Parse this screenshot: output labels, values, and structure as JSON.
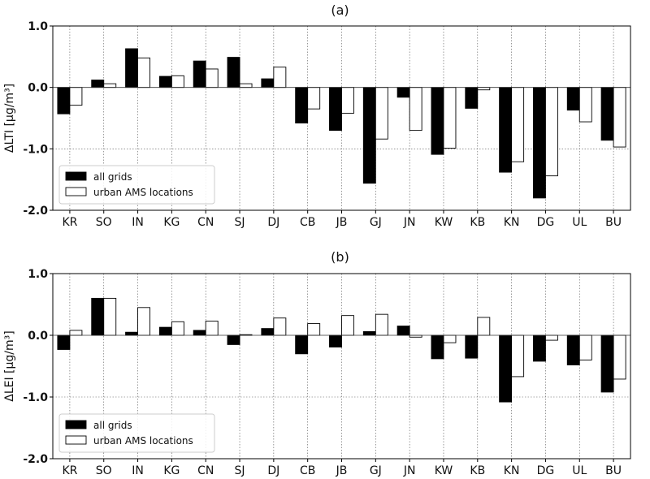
{
  "chart_data": [
    {
      "type": "bar",
      "title": "(a)",
      "ylabel": "ΔLTI [μg/m³]",
      "ylim": [
        -2.0,
        1.0
      ],
      "yticks": [
        "1.0",
        "0.0",
        "-1.0",
        "-2.0"
      ],
      "ytick_values": [
        1.0,
        0.0,
        -1.0,
        -2.0
      ],
      "grid": true,
      "legend_position": "lower-left",
      "categories": [
        "KR",
        "SO",
        "IN",
        "KG",
        "CN",
        "SJ",
        "DJ",
        "CB",
        "JB",
        "GJ",
        "JN",
        "KW",
        "KB",
        "KN",
        "DG",
        "UL",
        "BU"
      ],
      "series": [
        {
          "name": "all grids",
          "color": "#000000",
          "values": [
            -0.43,
            0.12,
            0.63,
            0.18,
            0.43,
            0.49,
            0.14,
            -0.58,
            -0.7,
            -1.56,
            -0.16,
            -1.09,
            -0.34,
            -1.38,
            -1.8,
            -0.37,
            -0.86
          ]
        },
        {
          "name": "urban AMS locations",
          "color": "#ffffff",
          "values": [
            -0.29,
            0.06,
            0.48,
            0.19,
            0.3,
            0.06,
            0.33,
            -0.35,
            -0.42,
            -0.84,
            -0.7,
            -0.99,
            -0.04,
            -1.21,
            -1.44,
            -0.56,
            -0.97
          ]
        }
      ]
    },
    {
      "type": "bar",
      "title": "(b)",
      "ylabel": "ΔLEI [μg/m³]",
      "ylim": [
        -2.0,
        1.0
      ],
      "yticks": [
        "1.0",
        "0.0",
        "-1.0",
        "-2.0"
      ],
      "ytick_values": [
        1.0,
        0.0,
        -1.0,
        -2.0
      ],
      "grid": true,
      "legend_position": "lower-left",
      "categories": [
        "KR",
        "SO",
        "IN",
        "KG",
        "CN",
        "SJ",
        "DJ",
        "CB",
        "JB",
        "GJ",
        "JN",
        "KW",
        "KB",
        "KN",
        "DG",
        "UL",
        "BU"
      ],
      "series": [
        {
          "name": "all grids",
          "color": "#000000",
          "values": [
            -0.23,
            0.6,
            0.05,
            0.13,
            0.08,
            -0.15,
            0.11,
            -0.3,
            -0.19,
            0.06,
            0.15,
            -0.38,
            -0.37,
            -1.08,
            -0.42,
            -0.48,
            -0.92
          ]
        },
        {
          "name": "urban AMS locations",
          "color": "#ffffff",
          "values": [
            0.08,
            0.6,
            0.45,
            0.22,
            0.23,
            0.01,
            0.28,
            0.19,
            0.32,
            0.34,
            -0.03,
            -0.12,
            0.29,
            -0.67,
            -0.08,
            -0.4,
            -0.71
          ]
        }
      ]
    }
  ]
}
